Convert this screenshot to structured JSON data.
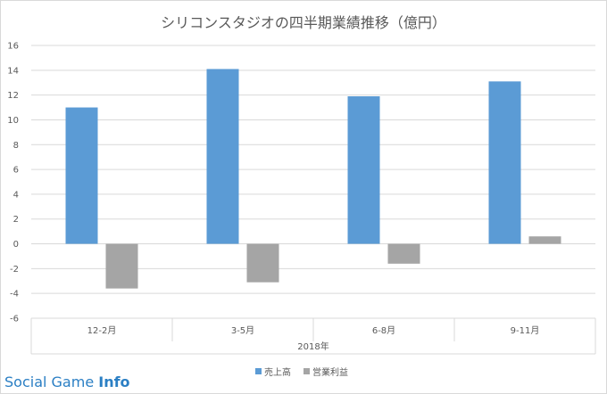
{
  "chart_data": {
    "type": "bar",
    "title": "シリコンスタジオの四半期業績推移（億円）",
    "group_label": "2018年",
    "categories": [
      "12-2月",
      "3-5月",
      "6-8月",
      "9-11月"
    ],
    "series": [
      {
        "name": "売上高",
        "color": "#5b9bd5",
        "values": [
          11.0,
          14.1,
          11.9,
          13.1
        ]
      },
      {
        "name": "営業利益",
        "color": "#a5a5a5",
        "values": [
          -3.6,
          -3.1,
          -1.6,
          0.6
        ]
      }
    ],
    "ylim": [
      -6,
      16
    ],
    "yticks": [
      -6,
      -4,
      -2,
      0,
      2,
      4,
      6,
      8,
      10,
      12,
      14,
      16
    ],
    "grid": true,
    "legend_position": "bottom"
  },
  "watermark": {
    "main": "Social Game ",
    "bold": "Info"
  }
}
